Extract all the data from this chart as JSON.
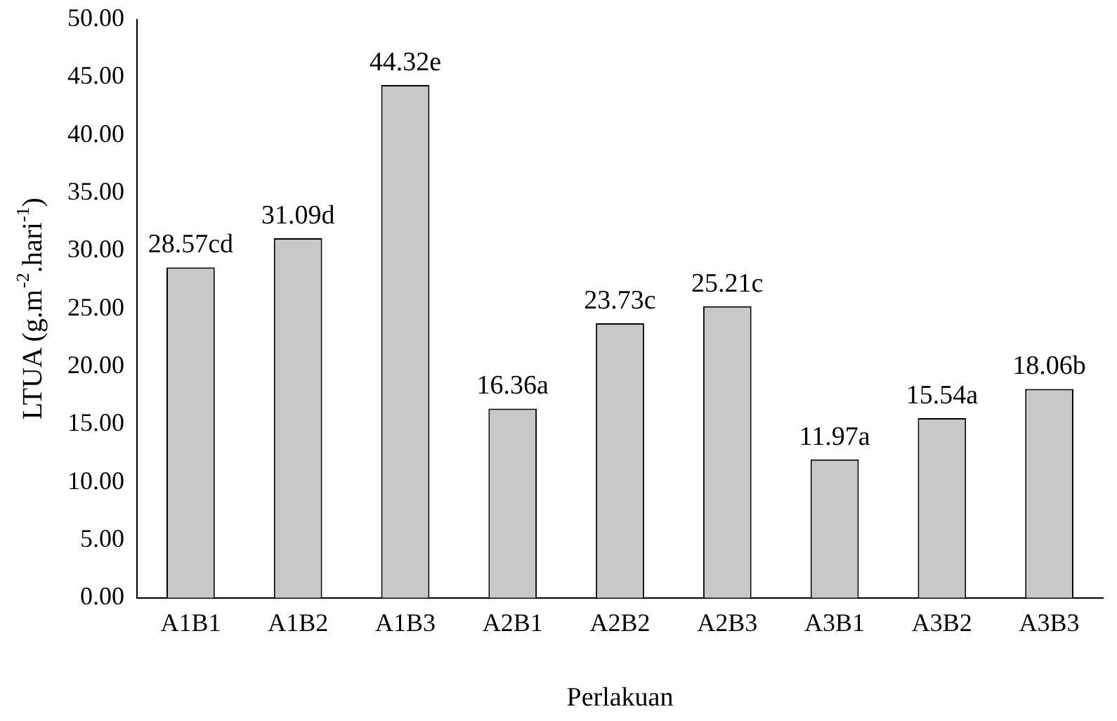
{
  "chart_data": {
    "type": "bar",
    "xlabel": "Perlakuan",
    "ylabel": "LTUA (g.m$^{-2}$.hari$^{-1}$)",
    "categories": [
      "A1B1",
      "A1B2",
      "A1B3",
      "A2B1",
      "A2B2",
      "A2B3",
      "A3B1",
      "A3B2",
      "A3B3"
    ],
    "values": [
      28.57,
      31.09,
      44.32,
      16.36,
      23.73,
      25.21,
      11.97,
      15.54,
      18.06
    ],
    "value_labels": [
      "28.57cd",
      "31.09d",
      "44.32e",
      "16.36a",
      "23.73c",
      "25.21c",
      "11.97a",
      "15.54a",
      "18.06b"
    ],
    "color": "#c8c8c8",
    "ylim": [
      0,
      50
    ],
    "yticks": [
      {
        "value": 0,
        "label": "0.00"
      },
      {
        "value": 5,
        "label": "5.00"
      },
      {
        "value": 10,
        "label": "10.00"
      },
      {
        "value": 15,
        "label": "15.00"
      },
      {
        "value": 20,
        "label": "20.00"
      },
      {
        "value": 25,
        "label": "25.00"
      },
      {
        "value": 30,
        "label": "30.00"
      },
      {
        "value": 35,
        "label": "35.00"
      },
      {
        "value": 40,
        "label": "40.00"
      },
      {
        "value": 45,
        "label": "45.00"
      },
      {
        "value": 50,
        "label": "50.00"
      }
    ],
    "grid": false,
    "legend": false
  }
}
